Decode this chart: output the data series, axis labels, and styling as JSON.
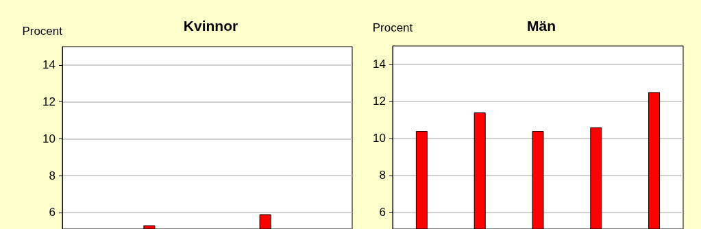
{
  "chart_data": [
    {
      "type": "bar",
      "title": "Kvinnor",
      "ylabel": "Procent",
      "categories": [
        null,
        null,
        null,
        null,
        null
      ],
      "values": [
        null,
        5.3,
        null,
        5.9,
        null
      ],
      "color": "#ff0000",
      "ylim": [
        5.1,
        15
      ],
      "yticks": [
        6,
        8,
        10,
        12,
        14
      ],
      "grid": "y",
      "tick_labels": "y"
    },
    {
      "type": "bar",
      "title": "Män",
      "ylabel": "Procent",
      "categories": [
        null,
        null,
        null,
        null,
        null
      ],
      "values": [
        10.4,
        11.4,
        10.4,
        10.6,
        12.5
      ],
      "color": "#ff0000",
      "ylim": [
        5.1,
        15
      ],
      "yticks": [
        6,
        8,
        10,
        12,
        14
      ],
      "grid": "y",
      "tick_labels": "y"
    }
  ]
}
